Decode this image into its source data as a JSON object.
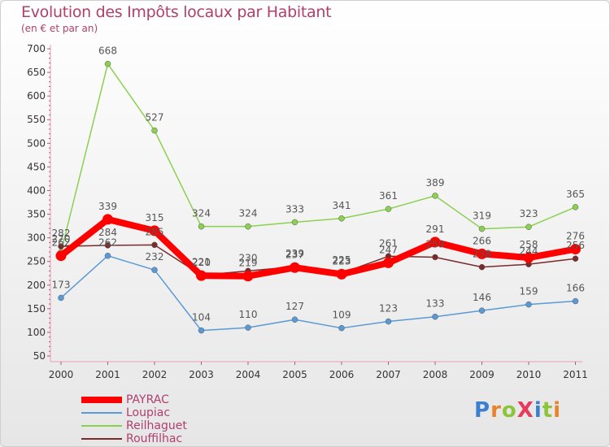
{
  "chart_data": {
    "type": "line",
    "title": "Evolution des Impôts locaux par Habitant",
    "subtitle": "(en € et par an)",
    "categories": [
      "2000",
      "2001",
      "2002",
      "2003",
      "2004",
      "2005",
      "2006",
      "2007",
      "2008",
      "2009",
      "2010",
      "2011"
    ],
    "ylim": [
      50,
      700
    ],
    "yticks": [
      50,
      100,
      150,
      200,
      250,
      300,
      350,
      400,
      450,
      500,
      550,
      600,
      650,
      700
    ],
    "grid": false,
    "legend_position": "bottom-left",
    "series": [
      {
        "name": "PAYRAC",
        "color": "#ff0000",
        "values": [
          262,
          339,
          315,
          220,
          219,
          237,
          223,
          247,
          291,
          266,
          258,
          276
        ],
        "labels": [
          "262",
          "339",
          "315",
          "220",
          "219",
          "237",
          "223",
          "247",
          "291",
          "266",
          "258",
          "276"
        ]
      },
      {
        "name": "Loupiac",
        "color": "#5a9ad4",
        "values": [
          173,
          262,
          232,
          104,
          110,
          127,
          109,
          123,
          133,
          146,
          159,
          166
        ],
        "labels": [
          "173",
          "262",
          "232",
          "104",
          "110",
          "127",
          "109",
          "123",
          "133",
          "146",
          "159",
          "166"
        ]
      },
      {
        "name": "Reilhaguet",
        "color": "#8cd050",
        "values": [
          270,
          668,
          527,
          324,
          324,
          333,
          341,
          361,
          389,
          319,
          323,
          365
        ],
        "labels": [
          "270",
          "668",
          "527",
          "324",
          "324",
          "333",
          "341",
          "361",
          "389",
          "319",
          "323",
          "365"
        ]
      },
      {
        "name": "Rouffilhac",
        "color": "#7a2a2a",
        "values": [
          282,
          284,
          285,
          221,
          230,
          239,
          225,
          261,
          259,
          238,
          244,
          256
        ],
        "labels": [
          "282",
          "284",
          "285",
          "221",
          "230",
          "239",
          "225",
          "261",
          "259",
          "238",
          "244",
          "256"
        ]
      }
    ]
  },
  "logo": {
    "text": "ProXiti",
    "letters": [
      "P",
      "r",
      "o",
      "X",
      "i",
      "t",
      "i"
    ],
    "colors": [
      "#3a7fd0",
      "#e8832a",
      "#8cc43a",
      "#e83a5a",
      "#3a7fd0",
      "#8cc43a",
      "#e8832a"
    ]
  }
}
